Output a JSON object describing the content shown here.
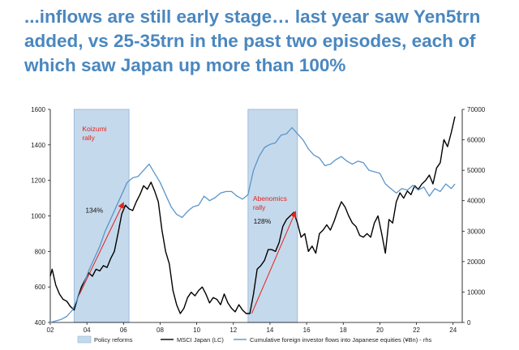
{
  "headline": "...inflows are still early stage… last year saw Yen5trn added, vs 25-35trn in the past two episodes, each of which saw Japan up more than 100%",
  "chart_data": {
    "type": "line",
    "title": "",
    "x_axis": {
      "range": [
        2002,
        2024.5
      ],
      "tick_values": [
        2002,
        2004,
        2006,
        2008,
        2010,
        2012,
        2014,
        2016,
        2018,
        2020,
        2022,
        2024
      ],
      "tick_labels": [
        "02",
        "04",
        "06",
        "08",
        "10",
        "12",
        "14",
        "16",
        "18",
        "20",
        "22",
        "24"
      ]
    },
    "y_axis_left": {
      "range": [
        400,
        1600
      ],
      "ticks": [
        400,
        600,
        800,
        1000,
        1200,
        1400,
        1600
      ]
    },
    "y_axis_right": {
      "range": [
        0,
        70000
      ],
      "ticks": [
        0,
        10000,
        20000,
        30000,
        40000,
        50000,
        60000,
        70000
      ]
    },
    "shaded_periods": [
      {
        "name": "Policy reforms",
        "label": "Koizumi\nrally",
        "start": 2003.3,
        "end": 2006.3
      },
      {
        "name": "Policy reforms",
        "label": "Abenomics\nrally",
        "start": 2012.8,
        "end": 2015.5
      }
    ],
    "arrows": [
      {
        "from": [
          2003.6,
          560
        ],
        "to": [
          2006.0,
          1075
        ],
        "label": "134%"
      },
      {
        "from": [
          2013.0,
          450
        ],
        "to": [
          2015.4,
          1025
        ],
        "label": "128%"
      }
    ],
    "series": [
      {
        "name": "MSCI Japan (LC)",
        "axis": "left",
        "color": "#000000",
        "x": [
          2002.0,
          2002.1,
          2002.3,
          2002.5,
          2002.7,
          2002.9,
          2003.1,
          2003.3,
          2003.5,
          2003.7,
          2003.9,
          2004.1,
          2004.3,
          2004.5,
          2004.7,
          2004.9,
          2005.1,
          2005.3,
          2005.5,
          2005.7,
          2005.9,
          2006.1,
          2006.3,
          2006.5,
          2006.7,
          2006.9,
          2007.1,
          2007.3,
          2007.5,
          2007.7,
          2007.9,
          2008.1,
          2008.3,
          2008.5,
          2008.7,
          2008.9,
          2009.1,
          2009.3,
          2009.5,
          2009.7,
          2009.9,
          2010.1,
          2010.3,
          2010.5,
          2010.7,
          2010.9,
          2011.1,
          2011.3,
          2011.5,
          2011.7,
          2011.9,
          2012.1,
          2012.3,
          2012.5,
          2012.7,
          2012.9,
          2013.1,
          2013.3,
          2013.5,
          2013.7,
          2013.9,
          2014.1,
          2014.3,
          2014.5,
          2014.7,
          2014.9,
          2015.1,
          2015.3,
          2015.5,
          2015.7,
          2015.9,
          2016.1,
          2016.3,
          2016.5,
          2016.7,
          2016.9,
          2017.1,
          2017.3,
          2017.5,
          2017.7,
          2017.9,
          2018.1,
          2018.3,
          2018.5,
          2018.7,
          2018.9,
          2019.1,
          2019.3,
          2019.5,
          2019.7,
          2019.9,
          2020.1,
          2020.3,
          2020.5,
          2020.7,
          2020.9,
          2021.1,
          2021.3,
          2021.5,
          2021.7,
          2021.9,
          2022.1,
          2022.3,
          2022.5,
          2022.7,
          2022.9,
          2023.1,
          2023.3,
          2023.5,
          2023.7,
          2023.9,
          2024.1
        ],
        "values": [
          660,
          700,
          610,
          560,
          530,
          520,
          490,
          470,
          540,
          600,
          640,
          680,
          660,
          700,
          690,
          720,
          710,
          760,
          800,
          900,
          1010,
          1060,
          1040,
          1030,
          1080,
          1120,
          1170,
          1150,
          1190,
          1140,
          1080,
          920,
          800,
          730,
          580,
          500,
          450,
          480,
          540,
          570,
          550,
          580,
          600,
          560,
          510,
          540,
          530,
          500,
          560,
          510,
          480,
          460,
          500,
          470,
          450,
          450,
          560,
          700,
          720,
          750,
          810,
          810,
          800,
          850,
          940,
          980,
          1000,
          1020,
          960,
          880,
          900,
          800,
          830,
          790,
          900,
          920,
          950,
          920,
          970,
          1030,
          1080,
          1050,
          1000,
          960,
          940,
          890,
          880,
          900,
          880,
          960,
          1000,
          900,
          790,
          980,
          960,
          1080,
          1130,
          1100,
          1140,
          1120,
          1170,
          1150,
          1180,
          1200,
          1230,
          1180,
          1270,
          1300,
          1430,
          1390,
          1470,
          1560
        ]
      },
      {
        "name": "Cumulative foreign investor flows into Japanese equities (¥Bn) - rhs",
        "axis": "right",
        "color": "#5b95c9",
        "x": [
          2002.0,
          2002.3,
          2002.6,
          2002.9,
          2003.2,
          2003.5,
          2003.8,
          2004.1,
          2004.4,
          2004.7,
          2005.0,
          2005.3,
          2005.6,
          2005.9,
          2006.2,
          2006.5,
          2006.8,
          2007.1,
          2007.4,
          2007.7,
          2008.0,
          2008.3,
          2008.6,
          2008.9,
          2009.2,
          2009.5,
          2009.8,
          2010.1,
          2010.4,
          2010.7,
          2011.0,
          2011.3,
          2011.6,
          2011.9,
          2012.2,
          2012.5,
          2012.8,
          2013.1,
          2013.4,
          2013.7,
          2014.0,
          2014.3,
          2014.6,
          2014.9,
          2015.2,
          2015.5,
          2015.8,
          2016.1,
          2016.4,
          2016.7,
          2017.0,
          2017.3,
          2017.6,
          2017.9,
          2018.2,
          2018.5,
          2018.8,
          2019.1,
          2019.4,
          2019.7,
          2020.0,
          2020.3,
          2020.6,
          2020.9,
          2021.2,
          2021.5,
          2021.8,
          2022.1,
          2022.4,
          2022.7,
          2023.0,
          2023.3,
          2023.6,
          2023.9,
          2024.1
        ],
        "values": [
          0,
          500,
          1000,
          2000,
          4000,
          8000,
          12000,
          17000,
          21000,
          25000,
          30000,
          34000,
          38000,
          42000,
          46000,
          47500,
          48000,
          50000,
          52000,
          49000,
          46000,
          42000,
          38000,
          35500,
          34500,
          36500,
          38000,
          38500,
          41500,
          40000,
          41000,
          42500,
          43000,
          43000,
          41500,
          40500,
          42000,
          50000,
          54500,
          57500,
          58500,
          59000,
          61500,
          62000,
          64000,
          62000,
          60000,
          57000,
          55000,
          54000,
          51500,
          52000,
          53500,
          54500,
          53000,
          52000,
          53000,
          52500,
          50000,
          49500,
          49000,
          45500,
          44000,
          42500,
          44000,
          43500,
          45000,
          43500,
          44500,
          41500,
          44000,
          43000,
          45500,
          44000,
          45500
        ]
      }
    ],
    "legend": [
      {
        "label": "Policy reforms",
        "kind": "box",
        "color": "#c5d9ec"
      },
      {
        "label": "MSCI Japan (LC)",
        "kind": "line",
        "color": "#000000"
      },
      {
        "label": "Cumulative foreign investor flows into Japanese equities (¥Bn) - rhs",
        "kind": "line",
        "color": "#5b95c9"
      }
    ],
    "legend_position": "bottom"
  }
}
